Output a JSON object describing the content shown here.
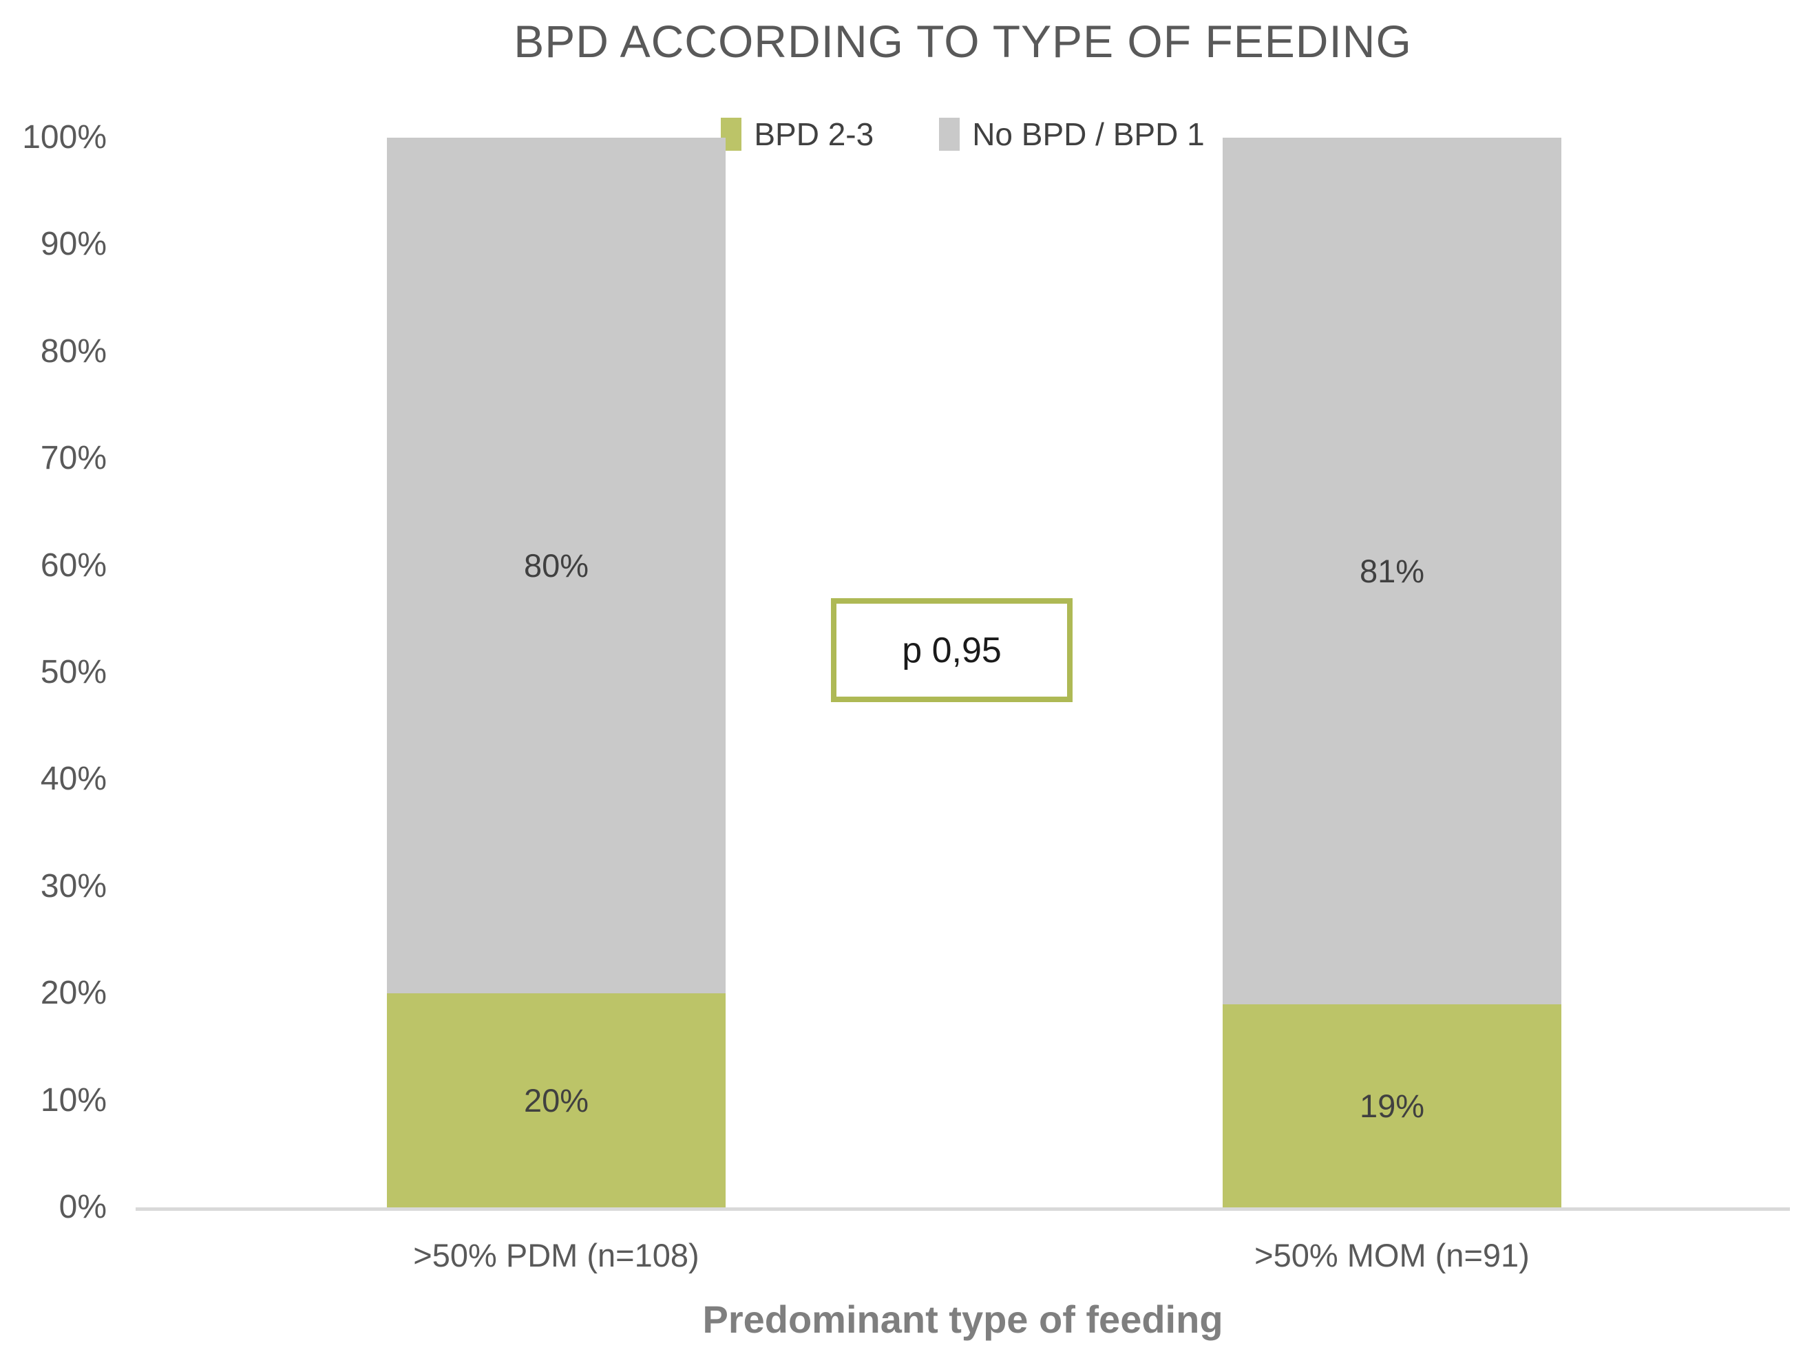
{
  "title": "BPD ACCORDING TO TYPE OF FEEDING",
  "legend": {
    "items": [
      {
        "label": "BPD 2-3",
        "color": "#BCC468"
      },
      {
        "label": "No BPD / BPD 1",
        "color": "#C9C9C9"
      }
    ]
  },
  "annotation": {
    "text": "p 0,95",
    "border_color": "#AEB955"
  },
  "x_axis_title": "Predominant type of feeding",
  "chart_data": {
    "type": "bar",
    "stacked": true,
    "title": "BPD ACCORDING TO TYPE OF FEEDING",
    "xlabel": "Predominant type of feeding",
    "ylabel": "",
    "categories": [
      ">50% PDM (n=108)",
      ">50% MOM (n=91)"
    ],
    "series": [
      {
        "name": "BPD 2-3",
        "color": "#BCC468",
        "values": [
          20,
          19
        ],
        "data_labels": [
          "20%",
          "19%"
        ]
      },
      {
        "name": "No BPD / BPD 1",
        "color": "#C9C9C9",
        "values": [
          80,
          81
        ],
        "data_labels": [
          "80%",
          "81%"
        ]
      }
    ],
    "ylim": [
      0,
      100
    ],
    "ytick_step": 10,
    "ytick_suffix": "%",
    "grid": false,
    "legend_position": "top-center",
    "annotation": "p 0,95"
  }
}
